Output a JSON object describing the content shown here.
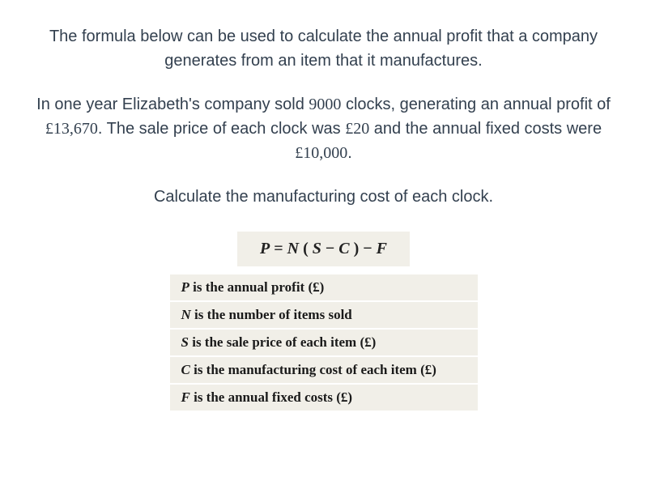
{
  "colors": {
    "text": "#33404f",
    "legend_bg": "#f1efe8",
    "legend_text": "#1a1a1a",
    "page_bg": "#ffffff"
  },
  "typography": {
    "body_fontsize": 20,
    "legend_fontsize": 17,
    "formula_fontsize": 20,
    "body_font": "-apple-system, Segoe UI, Arial, sans-serif",
    "math_font": "Georgia, Times New Roman, serif"
  },
  "para1_a": "The formula below can be used to calculate the annual profit that a company generates from an item that it manufactures.",
  "para2": {
    "a": "In one year Elizabeth's company sold ",
    "n1": "9000",
    "b": " clocks, generating an annual profit of ",
    "n2": "£13,670",
    "c": ". The sale price of each clock was ",
    "n3": "£20",
    "d": " and the annual fixed costs were ",
    "n4": "£10,000",
    "e": "."
  },
  "para3": "Calculate the manufacturing cost of each clock.",
  "formula": {
    "lhs": "P",
    "eq": " = ",
    "n": "N",
    "lp": " ( ",
    "s": "S",
    "minus": " − ",
    "c": "C",
    "rp": " ) − ",
    "f": "F"
  },
  "legend": [
    {
      "var": "P",
      "text": " is the annual profit (£)"
    },
    {
      "var": "N",
      "text": " is the number of items sold"
    },
    {
      "var": "S",
      "text": " is the sale price of each item (£)"
    },
    {
      "var": "C",
      "text": " is the manufacturing cost of each item (£)"
    },
    {
      "var": "F",
      "text": " is the annual fixed costs (£)"
    }
  ]
}
